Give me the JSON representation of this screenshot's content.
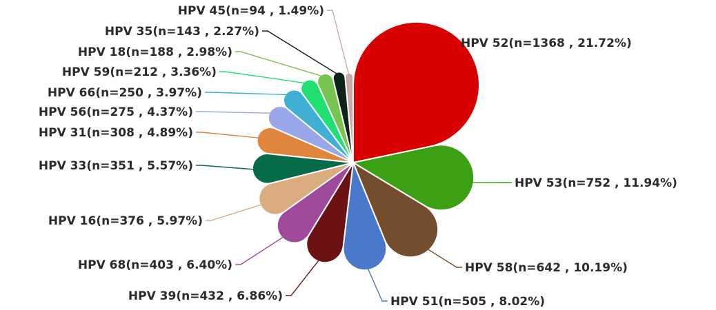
{
  "chart_data": {
    "type": "pie",
    "title": "",
    "slices": [
      {
        "name": "HPV 52",
        "n": 1368,
        "pct": 21.72,
        "label": "HPV 52(n=1368 , 21.72%)",
        "color": "#d90000"
      },
      {
        "name": "HPV 53",
        "n": 752,
        "pct": 11.94,
        "label": "HPV 53(n=752 , 11.94%)",
        "color": "#3ca014"
      },
      {
        "name": "HPV 58",
        "n": 642,
        "pct": 10.19,
        "label": "HPV 58(n=642 , 10.19%)",
        "color": "#744d2e"
      },
      {
        "name": "HPV 51",
        "n": 505,
        "pct": 8.02,
        "label": "HPV 51(n=505 , 8.02%)",
        "color": "#4a79cc"
      },
      {
        "name": "HPV 39",
        "n": 432,
        "pct": 6.86,
        "label": "HPV 39(n=432 , 6.86%)",
        "color": "#6b1214"
      },
      {
        "name": "HPV 68",
        "n": 403,
        "pct": 6.4,
        "label": "HPV 68(n=403 , 6.40%)",
        "color": "#a04a9c"
      },
      {
        "name": "HPV 16",
        "n": 376,
        "pct": 5.97,
        "label": "HPV 16(n=376 , 5.97%)",
        "color": "#dbac80"
      },
      {
        "name": "HPV 33",
        "n": 351,
        "pct": 5.57,
        "label": "HPV 33(n=351 , 5.57%)",
        "color": "#066b48"
      },
      {
        "name": "HPV 31",
        "n": 308,
        "pct": 4.89,
        "label": "HPV 31(n=308 , 4.89%)",
        "color": "#e0863c"
      },
      {
        "name": "HPV 56",
        "n": 275,
        "pct": 4.37,
        "label": "HPV 56(n=275 , 4.37%)",
        "color": "#9aa6ea"
      },
      {
        "name": "HPV 66",
        "n": 250,
        "pct": 3.97,
        "label": "HPV 66(n=250 , 3.97%)",
        "color": "#3fb0d3"
      },
      {
        "name": "HPV 59",
        "n": 212,
        "pct": 3.36,
        "label": "HPV 59(n=212 , 3.36%)",
        "color": "#1fe070"
      },
      {
        "name": "HPV 18",
        "n": 188,
        "pct": 2.98,
        "label": "HPV 18(n=188 , 2.98%)",
        "color": "#78c450"
      },
      {
        "name": "HPV 35",
        "n": 143,
        "pct": 2.27,
        "label": "HPV 35(n=143 , 2.27%)",
        "color": "#0f2418"
      },
      {
        "name": "HPV 45",
        "n": 94,
        "pct": 1.49,
        "label": "HPV 45(n=94 , 1.49%)",
        "color": "#c9aaa8"
      }
    ]
  }
}
